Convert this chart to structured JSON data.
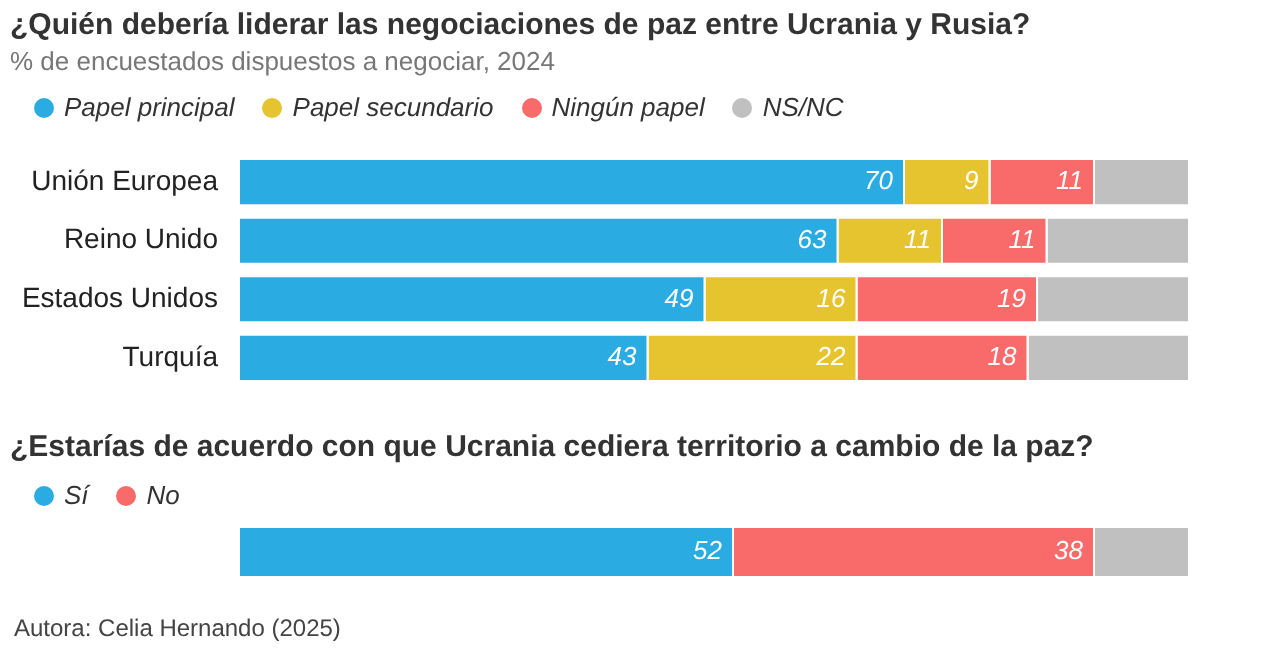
{
  "chart_data": [
    {
      "type": "bar",
      "orientation": "horizontal",
      "stacked": true,
      "title": "¿Quién debería liderar las negociaciones de paz entre Ucrania y Rusia?",
      "subtitle": "% de encuestados dispuestos a negociar, 2024",
      "categories": [
        "Unión Europea",
        "Reino Unido",
        "Estados Unidos",
        "Turquía"
      ],
      "xlim": [
        0,
        100
      ],
      "tick_labels": "y",
      "legend": "top left",
      "series": [
        {
          "name": "Papel principal",
          "color": "#2aace2",
          "values": [
            70,
            63,
            49,
            43
          ],
          "value_labels": [
            "70",
            "63",
            "49",
            "43"
          ]
        },
        {
          "name": "Papel secundario",
          "color": "#e6c430",
          "values": [
            9,
            11,
            16,
            22
          ],
          "value_labels": [
            "9",
            "11",
            "16",
            "22"
          ]
        },
        {
          "name": "Ningún papel",
          "color": "#f96a6a",
          "values": [
            11,
            11,
            19,
            18
          ],
          "value_labels": [
            "11",
            "11",
            "19",
            "18"
          ]
        },
        {
          "name": "NS/NC",
          "color": "#c0c0c0",
          "values": [
            10,
            15,
            16,
            17
          ],
          "value_labels": [
            null,
            null,
            null,
            null
          ]
        }
      ]
    },
    {
      "type": "bar",
      "orientation": "horizontal",
      "stacked": true,
      "title": "¿Estarías de acuerdo con que Ucrania cediera territorio a cambio de la paz?",
      "categories": [
        null
      ],
      "xlim": [
        0,
        100
      ],
      "tick_labels": false,
      "legend": "top left",
      "annotations": [
        "Autora: Celia Hernando (2025)"
      ],
      "series": [
        {
          "name": "Sí",
          "color": "#2aace2",
          "values": [
            52
          ],
          "value_labels": [
            "52"
          ]
        },
        {
          "name": "No",
          "color": "#f96a6a",
          "values": [
            38
          ],
          "value_labels": [
            "38"
          ]
        },
        {
          "color": "#c0c0c0",
          "values": [
            10
          ],
          "value_labels": [
            null
          ]
        }
      ]
    }
  ]
}
